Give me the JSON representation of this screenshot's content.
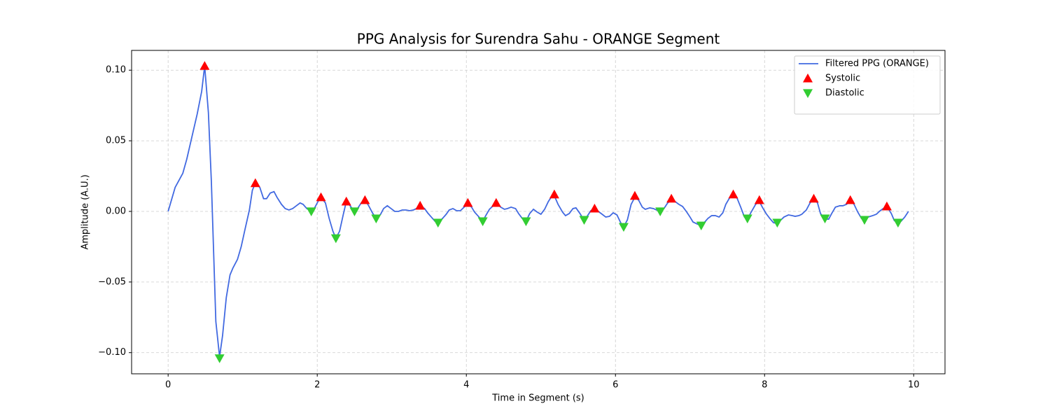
{
  "chart_data": {
    "type": "line",
    "title": "PPG Analysis for Surendra Sahu - ORANGE Segment",
    "x_label": "Time in Segment (s)",
    "y_label": "Amplitude (A.U.)",
    "xlim": [
      -0.49,
      10.42
    ],
    "ylim": [
      -0.115,
      0.114
    ],
    "xticks": [
      0,
      2,
      4,
      6,
      8,
      10
    ],
    "yticks": [
      {
        "value": -0.1,
        "label": "−0.10"
      },
      {
        "value": -0.05,
        "label": "−0.05"
      },
      {
        "value": 0,
        "label": "0.00"
      },
      {
        "value": 0.05,
        "label": "0.05"
      },
      {
        "value": 0.1,
        "label": "0.10"
      }
    ],
    "grid": true,
    "legend": "upper right",
    "series": [
      {
        "name": "Filtered PPG (ORANGE)",
        "color": "#4169e1",
        "kind": "line",
        "x": [
          0,
          0.094,
          0.197,
          0.25,
          0.32,
          0.39,
          0.45,
          0.49,
          0.54,
          0.58,
          0.64,
          0.69,
          0.73,
          0.78,
          0.83,
          0.87,
          0.93,
          0.98,
          1.03,
          1.09,
          1.13,
          1.17,
          1.23,
          1.28,
          1.32,
          1.37,
          1.42,
          1.46,
          1.52,
          1.57,
          1.62,
          1.67,
          1.72,
          1.77,
          1.81,
          1.86,
          1.92,
          1.96,
          2.01,
          2.05,
          2.11,
          2.16,
          2.21,
          2.25,
          2.3,
          2.35,
          2.39,
          2.44,
          2.5,
          2.54,
          2.59,
          2.64,
          2.69,
          2.74,
          2.79,
          2.85,
          2.89,
          2.94,
          2.99,
          3.04,
          3.09,
          3.14,
          3.19,
          3.24,
          3.29,
          3.33,
          3.38,
          3.44,
          3.48,
          3.53,
          3.58,
          3.62,
          3.68,
          3.73,
          3.77,
          3.82,
          3.87,
          3.92,
          3.97,
          4.02,
          4.07,
          4.11,
          4.17,
          4.22,
          4.26,
          4.31,
          4.36,
          4.4,
          4.46,
          4.51,
          4.55,
          4.6,
          4.66,
          4.7,
          4.75,
          4.8,
          4.85,
          4.9,
          4.95,
          5.0,
          5.05,
          5.1,
          5.15,
          5.18,
          5.23,
          5.29,
          5.33,
          5.38,
          5.43,
          5.47,
          5.53,
          5.58,
          5.62,
          5.67,
          5.72,
          5.77,
          5.82,
          5.87,
          5.92,
          5.97,
          6.02,
          6.07,
          6.11,
          6.16,
          6.21,
          6.26,
          6.31,
          6.36,
          6.4,
          6.46,
          6.51,
          6.55,
          6.6,
          6.65,
          6.7,
          6.75,
          6.8,
          6.85,
          6.9,
          6.95,
          7.0,
          7.04,
          7.1,
          7.15,
          7.19,
          7.24,
          7.29,
          7.34,
          7.39,
          7.44,
          7.48,
          7.53,
          7.58,
          7.63,
          7.68,
          7.73,
          7.77,
          7.82,
          7.88,
          7.93,
          7.97,
          8.02,
          8.07,
          8.12,
          8.17,
          8.22,
          8.26,
          8.32,
          8.37,
          8.41,
          8.46,
          8.5,
          8.56,
          8.61,
          8.66,
          8.71,
          8.75,
          8.81,
          8.86,
          8.9,
          8.95,
          9.01,
          9.05,
          9.1,
          9.15,
          9.2,
          9.25,
          9.3,
          9.34,
          9.39,
          9.45,
          9.5,
          9.54,
          9.59,
          9.64,
          9.7,
          9.74,
          9.79,
          9.83,
          9.88,
          9.93
        ],
        "values": [
          0,
          0.017,
          0.027,
          0.037,
          0.053,
          0.069,
          0.085,
          0.103,
          0.07,
          0.021,
          -0.078,
          -0.103,
          -0.088,
          -0.061,
          -0.045,
          -0.04,
          -0.034,
          -0.025,
          -0.013,
          0.001,
          0.015,
          0.02,
          0.017,
          0.009,
          0.009,
          0.013,
          0.014,
          0.01,
          0.005,
          0.002,
          0.001,
          0.002,
          0.004,
          0.006,
          0.005,
          0.002,
          0,
          0.002,
          0.007,
          0.01,
          0.006,
          -0.005,
          -0.014,
          -0.019,
          -0.014,
          -0.002,
          0.007,
          0.004,
          0,
          0.002,
          0.006,
          0.008,
          0.004,
          -0.001,
          -0.005,
          -0.002,
          0.002,
          0.004,
          0.002,
          0,
          0,
          0.001,
          0.001,
          0.0005,
          0.001,
          0.002,
          0.004,
          0.002,
          -0.001,
          -0.004,
          -0.007,
          -0.008,
          -0.005,
          -0.002,
          0.001,
          0.002,
          0.0005,
          0.0005,
          0.003,
          0.005,
          0.003,
          -0.0005,
          -0.004,
          -0.007,
          -0.003,
          0.0015,
          0.004,
          0.006,
          0.003,
          0.0015,
          0.002,
          0.003,
          0.002,
          -0.0015,
          -0.005,
          -0.007,
          -0.0015,
          0.0015,
          -0.0005,
          -0.002,
          0.0015,
          0.007,
          0.011,
          0.011,
          0.005,
          -0.0005,
          -0.003,
          -0.0015,
          0.002,
          0.0025,
          -0.002,
          -0.0065,
          -0.0035,
          0.0005,
          0.002,
          0,
          -0.002,
          -0.004,
          -0.0035,
          -0.001,
          -0.0025,
          -0.008,
          -0.011,
          -0.006,
          0.005,
          0.01,
          0.008,
          0.003,
          0.0015,
          0.0025,
          0.002,
          0.001,
          0,
          0.002,
          0.006,
          0.008,
          0.007,
          0.005,
          0.0035,
          0,
          -0.004,
          -0.0075,
          -0.009,
          -0.01,
          -0.008,
          -0.005,
          -0.003,
          -0.003,
          -0.004,
          -0.001,
          0.005,
          0.0095,
          0.011,
          0.0095,
          0.003,
          -0.004,
          -0.0055,
          -0.0005,
          0.005,
          0.007,
          0.003,
          -0.0015,
          -0.005,
          -0.008,
          -0.0085,
          -0.006,
          -0.004,
          -0.0025,
          -0.003,
          -0.0035,
          -0.003,
          -0.002,
          0.001,
          0.006,
          0.009,
          0.006,
          -0.0015,
          -0.0055,
          -0.0055,
          -0.0015,
          0.003,
          0.004,
          0.004,
          0.005,
          0.0075,
          0.005,
          -0.0005,
          -0.005,
          -0.006,
          -0.004,
          -0.003,
          -0.002,
          0,
          0.002,
          0.0035,
          -0.0015,
          -0.0065,
          -0.008,
          -0.007,
          -0.004,
          0
        ]
      },
      {
        "name": "Systolic",
        "color": "#ff0000",
        "kind": "scatter",
        "marker": "^",
        "x": [
          0.49,
          1.17,
          2.05,
          2.39,
          2.64,
          3.38,
          4.02,
          4.4,
          5.18,
          5.72,
          6.26,
          6.75,
          7.58,
          7.93,
          8.66,
          9.15,
          9.64
        ],
        "values": [
          0.103,
          0.02,
          0.01,
          0.007,
          0.008,
          0.004,
          0.006,
          0.006,
          0.012,
          0.002,
          0.011,
          0.009,
          0.012,
          0.008,
          0.009,
          0.008,
          0.0035
        ]
      },
      {
        "name": "Diastolic",
        "color": "#32cd32",
        "kind": "scatter",
        "marker": "v",
        "x": [
          0.69,
          1.92,
          2.25,
          2.5,
          2.79,
          3.62,
          4.22,
          4.8,
          5.58,
          6.11,
          6.6,
          7.15,
          7.77,
          8.17,
          8.81,
          9.34,
          9.79
        ],
        "values": [
          -0.104,
          0,
          -0.019,
          0,
          -0.005,
          -0.008,
          -0.007,
          -0.007,
          -0.006,
          -0.011,
          0,
          -0.01,
          -0.005,
          -0.008,
          -0.005,
          -0.006,
          -0.008
        ]
      }
    ]
  }
}
